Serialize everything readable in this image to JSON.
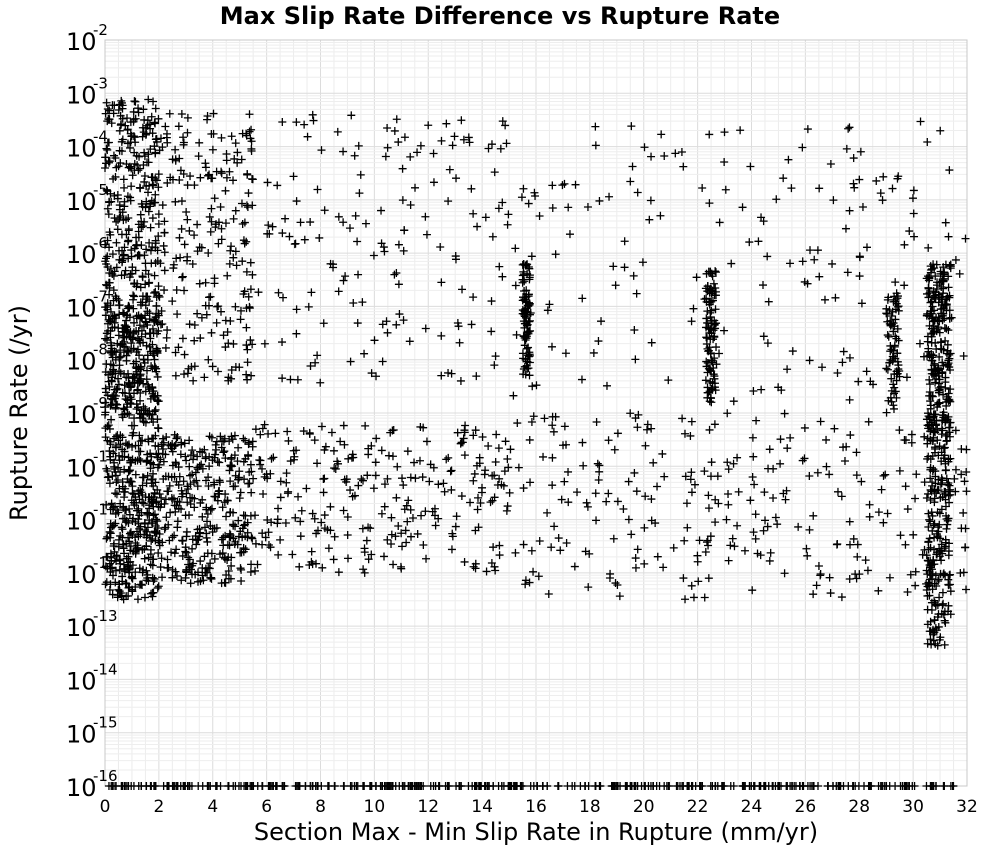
{
  "chart_data": {
    "type": "scatter",
    "title": "Max Slip Rate Difference vs Rupture Rate",
    "xlabel": "Section Max - Min Slip Rate in Rupture (mm/yr)",
    "ylabel": "Rupture Rate (/yr)",
    "xlim": [
      0,
      32
    ],
    "ylim_log10": [
      -16,
      -2
    ],
    "yscale": "log",
    "grid": true,
    "marker": "+",
    "marker_color": "#000000",
    "x_ticks": [
      "0",
      "2",
      "4",
      "6",
      "8",
      "10",
      "12",
      "14",
      "16",
      "18",
      "20",
      "22",
      "24",
      "26",
      "28",
      "30",
      "32"
    ],
    "y_ticks": [
      {
        "base": "10",
        "exp": "-2"
      },
      {
        "base": "10",
        "exp": "-3"
      },
      {
        "base": "10",
        "exp": "-4"
      },
      {
        "base": "10",
        "exp": "-5"
      },
      {
        "base": "10",
        "exp": "-6"
      },
      {
        "base": "10",
        "exp": "-7"
      },
      {
        "base": "10",
        "exp": "-8"
      },
      {
        "base": "10",
        "exp": "-9"
      },
      {
        "base": "10",
        "exp": "-10"
      },
      {
        "base": "10",
        "exp": "-11"
      },
      {
        "base": "10",
        "exp": "-12"
      },
      {
        "base": "10",
        "exp": "-13"
      },
      {
        "base": "10",
        "exp": "-14"
      },
      {
        "base": "10",
        "exp": "-15"
      },
      {
        "base": "10",
        "exp": "-16"
      }
    ],
    "point_groups": [
      {
        "x_range": [
          0,
          2
        ],
        "log10_y_range": [
          -12.5,
          -9
        ],
        "count": 380
      },
      {
        "x_range": [
          0,
          2
        ],
        "log10_y_range": [
          -9,
          -7
        ],
        "count": 280
      },
      {
        "x_range": [
          0,
          2
        ],
        "log10_y_range": [
          -7,
          -3.1
        ],
        "count": 300
      },
      {
        "x_range": [
          2,
          5.5
        ],
        "log10_y_range": [
          -12.2,
          -9.4
        ],
        "count": 340
      },
      {
        "x_range": [
          2,
          5.5
        ],
        "log10_y_range": [
          -8.4,
          -3.3
        ],
        "count": 220
      },
      {
        "x_range": [
          5.5,
          15
        ],
        "log10_y_range": [
          -12,
          -9.2
        ],
        "count": 260
      },
      {
        "x_range": [
          5.5,
          15
        ],
        "log10_y_range": [
          -8.5,
          -3.4
        ],
        "count": 160
      },
      {
        "x_range": [
          15,
          32
        ],
        "log10_y_range": [
          -12.5,
          -9
        ],
        "count": 300
      },
      {
        "x_range": [
          15,
          32
        ],
        "log10_y_range": [
          -8.8,
          -3.5
        ],
        "count": 190
      },
      {
        "x_range": [
          15.5,
          15.8
        ],
        "log10_y_range": [
          -8.3,
          -6.2
        ],
        "count": 90
      },
      {
        "x_range": [
          22.3,
          22.7
        ],
        "log10_y_range": [
          -8.8,
          -6.3
        ],
        "count": 100
      },
      {
        "x_range": [
          30.5,
          31.4
        ],
        "log10_y_range": [
          -9.3,
          -6.2
        ],
        "count": 220
      },
      {
        "x_range": [
          30.5,
          31.4
        ],
        "log10_y_range": [
          -13.4,
          -9
        ],
        "count": 220
      },
      {
        "x_range": [
          29,
          29.5
        ],
        "log10_y_range": [
          -9,
          -6.8
        ],
        "count": 70
      },
      {
        "x_range": [
          0,
          31.5
        ],
        "log10_y_range": [
          -16,
          -16
        ],
        "count": 400
      }
    ]
  }
}
